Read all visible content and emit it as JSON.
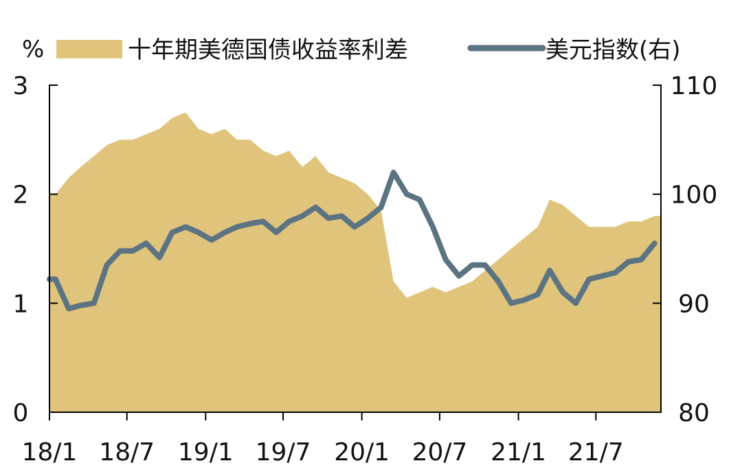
{
  "chart_data": {
    "type": "area",
    "title": "",
    "left_axis_unit": "%",
    "x_ticks": [
      "18/1",
      "18/7",
      "19/1",
      "19/7",
      "20/1",
      "20/7",
      "21/1",
      "21/7"
    ],
    "y_left": {
      "ticks": [
        "0",
        "1",
        "2",
        "3"
      ],
      "range": [
        0,
        3
      ]
    },
    "y_right": {
      "ticks": [
        "80",
        "90",
        "100",
        "110"
      ],
      "range": [
        80,
        110
      ]
    },
    "grid": false,
    "legend_position": "top",
    "series": [
      {
        "name": "十年期美德国债收益率利差",
        "type": "area",
        "axis": "left",
        "color": "#E0C47C",
        "x": [
          "2018-01",
          "2018-02",
          "2018-03",
          "2018-04",
          "2018-05",
          "2018-06",
          "2018-07",
          "2018-08",
          "2018-09",
          "2018-10",
          "2018-11",
          "2018-12",
          "2019-01",
          "2019-02",
          "2019-03",
          "2019-04",
          "2019-05",
          "2019-06",
          "2019-07",
          "2019-08",
          "2019-09",
          "2019-10",
          "2019-11",
          "2019-12",
          "2020-01",
          "2020-02",
          "2020-03",
          "2020-04",
          "2020-05",
          "2020-06",
          "2020-07",
          "2020-08",
          "2020-09",
          "2020-10",
          "2020-11",
          "2020-12",
          "2021-01",
          "2021-02",
          "2021-03",
          "2021-04",
          "2021-05",
          "2021-06",
          "2021-07",
          "2021-08",
          "2021-09",
          "2021-10",
          "2021-11"
        ],
        "values": [
          2.0,
          2.15,
          2.25,
          2.35,
          2.45,
          2.5,
          2.5,
          2.55,
          2.6,
          2.7,
          2.75,
          2.6,
          2.55,
          2.6,
          2.5,
          2.5,
          2.4,
          2.35,
          2.4,
          2.25,
          2.35,
          2.2,
          2.15,
          2.1,
          2.0,
          1.85,
          1.2,
          1.05,
          1.1,
          1.15,
          1.1,
          1.15,
          1.2,
          1.3,
          1.4,
          1.5,
          1.6,
          1.7,
          1.95,
          1.9,
          1.8,
          1.7,
          1.7,
          1.7,
          1.75,
          1.75,
          1.8
        ]
      },
      {
        "name": "美元指数(右)",
        "type": "line",
        "axis": "right",
        "color": "#5C7382",
        "x": [
          "2018-01",
          "2018-02",
          "2018-03",
          "2018-04",
          "2018-05",
          "2018-06",
          "2018-07",
          "2018-08",
          "2018-09",
          "2018-10",
          "2018-11",
          "2018-12",
          "2019-01",
          "2019-02",
          "2019-03",
          "2019-04",
          "2019-05",
          "2019-06",
          "2019-07",
          "2019-08",
          "2019-09",
          "2019-10",
          "2019-11",
          "2019-12",
          "2020-01",
          "2020-02",
          "2020-03",
          "2020-04",
          "2020-05",
          "2020-06",
          "2020-07",
          "2020-08",
          "2020-09",
          "2020-10",
          "2020-11",
          "2020-12",
          "2021-01",
          "2021-02",
          "2021-03",
          "2021-04",
          "2021-05",
          "2021-06",
          "2021-07",
          "2021-08",
          "2021-09",
          "2021-10",
          "2021-11"
        ],
        "values": [
          92.2,
          89.5,
          89.8,
          90.0,
          93.5,
          94.8,
          94.8,
          95.5,
          94.2,
          96.5,
          97.0,
          96.5,
          95.8,
          96.5,
          97.0,
          97.3,
          97.5,
          96.5,
          97.5,
          98.0,
          98.8,
          97.8,
          98.0,
          97.0,
          97.8,
          98.8,
          102.0,
          100.0,
          99.5,
          97.0,
          94.0,
          92.5,
          93.5,
          93.5,
          92.0,
          90.0,
          90.3,
          90.8,
          93.0,
          91.0,
          90.0,
          92.2,
          92.5,
          92.8,
          93.8,
          94.0,
          95.5
        ]
      }
    ]
  }
}
